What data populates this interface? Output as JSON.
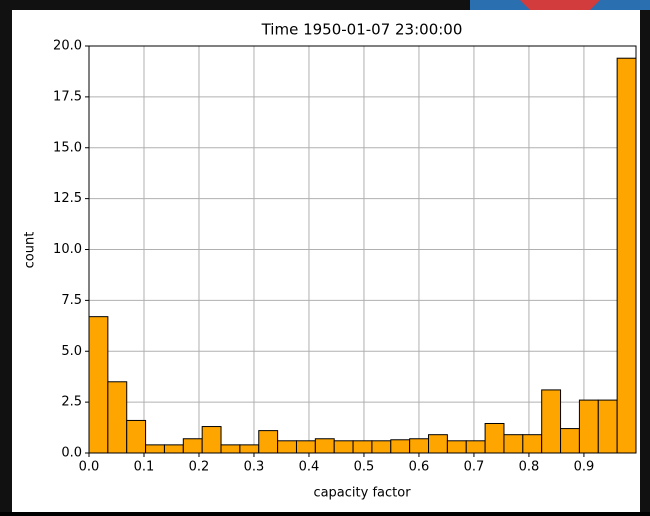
{
  "chart_data": {
    "type": "histogram",
    "title": "Time 1950-01-07 23:00:00",
    "xlabel": "capacity factor",
    "ylabel": "count",
    "bins": [
      0,
      0.0343,
      0.0686,
      0.1029,
      0.1372,
      0.1715,
      0.2058,
      0.2401,
      0.2744,
      0.3087,
      0.343,
      0.3773,
      0.4116,
      0.4459,
      0.4802,
      0.5145,
      0.5488,
      0.5831,
      0.6174,
      0.6517,
      0.686,
      0.7203,
      0.7546,
      0.7889,
      0.8232,
      0.8575,
      0.8918,
      0.9261,
      0.9604,
      0.9947
    ],
    "values": [
      6.7,
      3.5,
      1.6,
      0.4,
      0.4,
      0.7,
      1.3,
      0.4,
      0.4,
      1.1,
      0.6,
      0.6,
      0.7,
      0.6,
      0.6,
      0.6,
      0.65,
      0.7,
      0.9,
      0.6,
      0.6,
      1.45,
      0.9,
      0.9,
      3.1,
      1.2,
      2.6,
      2.6,
      19.4
    ],
    "color": "#ffa500",
    "edgecolor": "#000000",
    "xlim": [
      0,
      0.9947
    ],
    "ylim": [
      0,
      20
    ],
    "xticks": [
      {
        "value": 0,
        "label": "0.0"
      },
      0.1,
      0.2,
      0.3,
      0.4,
      0.5,
      0.6,
      0.7,
      0.8,
      0.9
    ],
    "yticks": [
      {
        "value": 0,
        "label": "0.0"
      },
      {
        "value": 2.5,
        "label": "2.5"
      },
      {
        "value": 5,
        "label": "5.0"
      },
      {
        "value": 7.5,
        "label": "7.5"
      },
      {
        "value": 10,
        "label": "10.0"
      },
      {
        "value": 12.5,
        "label": "12.5"
      },
      {
        "value": 15,
        "label": "15.0"
      },
      {
        "value": 17.5,
        "label": "17.5"
      },
      {
        "value": 20,
        "label": "20.0"
      }
    ],
    "grid": true
  }
}
